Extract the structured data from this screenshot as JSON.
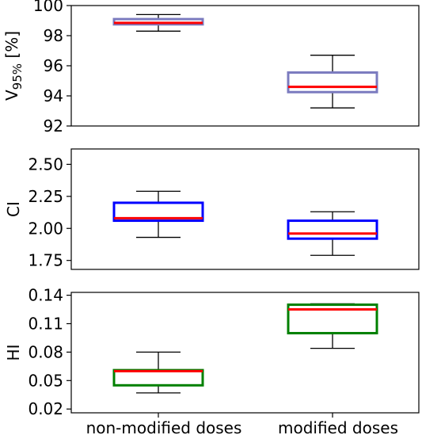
{
  "chart_data": [
    {
      "type": "box",
      "ylabel_main": "V",
      "ylabel_sub": "95%",
      "ylabel_suffix": " [%]",
      "ylim": [
        92,
        100
      ],
      "yticks": [
        92,
        94,
        96,
        98,
        100
      ],
      "tick_labels": [
        "92",
        "94",
        "96",
        "98",
        "100"
      ],
      "box_color": "#7b7bbf",
      "median_color": "#ff0000",
      "boxes": [
        {
          "whisker_low": 98.3,
          "q1": 98.75,
          "median": 98.85,
          "q3": 99.1,
          "whisker_high": 99.4
        },
        {
          "whisker_low": 93.2,
          "q1": 94.25,
          "median": 94.6,
          "q3": 95.55,
          "whisker_high": 96.7
        }
      ]
    },
    {
      "type": "box",
      "ylabel": "CI",
      "ylim": [
        1.68,
        2.62
      ],
      "yticks": [
        1.75,
        2.0,
        2.25,
        2.5
      ],
      "tick_labels": [
        "1.75",
        "2.00",
        "2.25",
        "2.50"
      ],
      "box_color": "#0000ff",
      "median_color": "#ff0000",
      "boxes": [
        {
          "whisker_low": 1.93,
          "q1": 2.06,
          "median": 2.08,
          "q3": 2.2,
          "whisker_high": 2.29
        },
        {
          "whisker_low": 1.79,
          "q1": 1.92,
          "median": 1.96,
          "q3": 2.06,
          "whisker_high": 2.13
        }
      ]
    },
    {
      "type": "box",
      "ylabel": "HI",
      "ylim": [
        0.016,
        0.143
      ],
      "yticks": [
        0.02,
        0.05,
        0.08,
        0.11,
        0.14
      ],
      "tick_labels": [
        "0.02",
        "0.05",
        "0.08",
        "0.11",
        "0.14"
      ],
      "box_color": "#008000",
      "median_color": "#ff0000",
      "boxes": [
        {
          "whisker_low": 0.037,
          "q1": 0.045,
          "median": 0.06,
          "q3": 0.061,
          "whisker_high": 0.08
        },
        {
          "whisker_low": 0.084,
          "q1": 0.1,
          "median": 0.125,
          "q3": 0.13,
          "whisker_high": 0.131
        }
      ]
    }
  ],
  "categories": [
    "non-modified doses",
    "modified doses"
  ]
}
